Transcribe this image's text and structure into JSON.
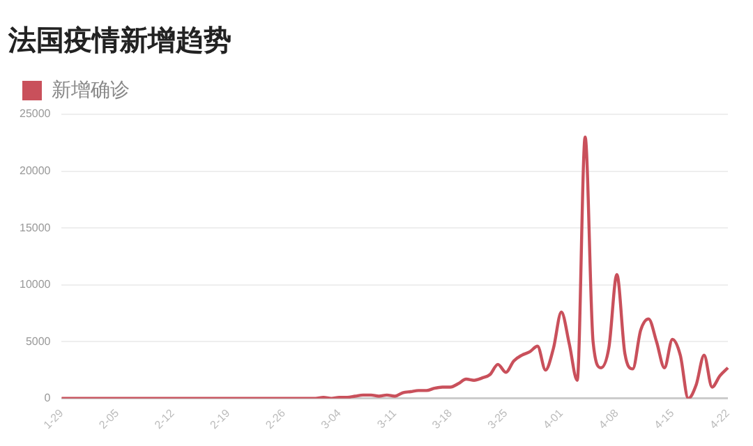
{
  "chart_data": {
    "type": "line",
    "title": "法国疫情新增趋势",
    "categories": [
      "1-29",
      null,
      null,
      null,
      null,
      null,
      null,
      "2-05",
      null,
      null,
      null,
      null,
      null,
      null,
      "2-12",
      null,
      null,
      null,
      null,
      null,
      null,
      "2-19",
      null,
      null,
      null,
      null,
      null,
      null,
      "2-26",
      null,
      null,
      null,
      null,
      null,
      null,
      "3-04",
      null,
      null,
      null,
      null,
      null,
      null,
      "3-11",
      null,
      null,
      null,
      null,
      null,
      null,
      "3-18",
      null,
      null,
      null,
      null,
      null,
      null,
      "3-25",
      null,
      null,
      null,
      null,
      null,
      null,
      "4-01",
      null,
      null,
      null,
      null,
      null,
      null,
      "4-08",
      null,
      null,
      null,
      null,
      null,
      null,
      "4-15",
      null,
      null,
      null,
      null,
      null,
      null,
      "4-22"
    ],
    "series": [
      {
        "name": "新增确诊",
        "color": "#c9505b",
        "values": [
          0,
          0,
          0,
          0,
          0,
          0,
          0,
          0,
          0,
          0,
          0,
          0,
          0,
          0,
          0,
          0,
          0,
          0,
          0,
          0,
          0,
          0,
          0,
          0,
          0,
          0,
          0,
          0,
          0,
          0,
          0,
          0,
          0,
          100,
          0,
          100,
          100,
          200,
          300,
          300,
          200,
          300,
          200,
          500,
          600,
          700,
          700,
          900,
          1000,
          1000,
          1300,
          1700,
          1600,
          1800,
          2100,
          3000,
          2300,
          3300,
          3800,
          4100,
          4600,
          2500,
          4400,
          7600,
          4800,
          1600,
          23000,
          5000,
          2700,
          4500,
          10900,
          4000,
          2600,
          6000,
          7000,
          5000,
          2700,
          5200,
          3800,
          0,
          1200,
          3800,
          1000,
          2000,
          2700
        ]
      }
    ],
    "ylim": [
      0,
      25000
    ],
    "yticks": [
      0,
      5000,
      10000,
      15000,
      20000,
      25000
    ],
    "grid": "y",
    "legend": "top left",
    "line_style": "solid"
  }
}
